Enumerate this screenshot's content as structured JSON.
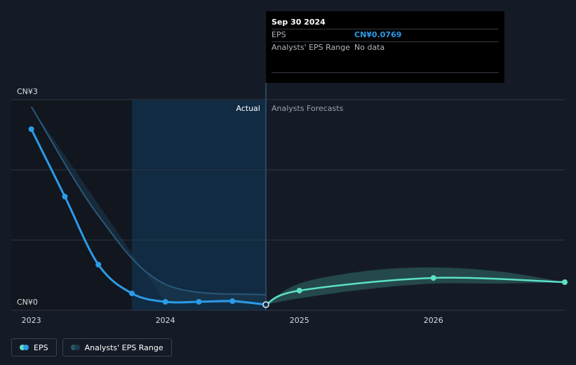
{
  "colors": {
    "eps": "#2b9be8",
    "forecast": "#5de0c8",
    "range": "#2b5b5b",
    "grid": "#2e3542",
    "axis_text": "#d8dbe0",
    "muted_text": "#9aa1ab"
  },
  "tooltip": {
    "date": "Sep 30 2024",
    "rows": [
      {
        "label": "EPS",
        "value": "CN¥0.0769"
      },
      {
        "label": "Analysts' EPS Range",
        "value": "No data"
      }
    ]
  },
  "labels": {
    "actual": "Actual",
    "forecast": "Analysts Forecasts"
  },
  "legend": [
    {
      "label": "EPS",
      "icon": "eps-dots-icon"
    },
    {
      "label": "Analysts' EPS Range",
      "icon": "range-dots-icon"
    }
  ],
  "chart_data": {
    "type": "line",
    "ylim": [
      0,
      3
    ],
    "y_ticks": [
      {
        "value": 3,
        "label": "CN¥3"
      },
      {
        "value": 0,
        "label": "CN¥0"
      }
    ],
    "x_ticks": [
      {
        "value": 2023.0,
        "label": "2023"
      },
      {
        "value": 2024.0,
        "label": "2024"
      },
      {
        "value": 2025.0,
        "label": "2025"
      },
      {
        "value": 2026.0,
        "label": "2026"
      }
    ],
    "xlim": [
      2022.85,
      2026.98
    ],
    "highlight_start": 2023.75,
    "actual_end": 2024.75,
    "series": [
      {
        "name": "EPS",
        "kind": "actual",
        "points": [
          {
            "x": 2023.0,
            "y": 2.58
          },
          {
            "x": 2023.25,
            "y": 1.62
          },
          {
            "x": 2023.5,
            "y": 0.65
          },
          {
            "x": 2023.75,
            "y": 0.24
          },
          {
            "x": 2024.0,
            "y": 0.12
          },
          {
            "x": 2024.25,
            "y": 0.12
          },
          {
            "x": 2024.5,
            "y": 0.13
          },
          {
            "x": 2024.75,
            "y": 0.08
          }
        ]
      },
      {
        "name": "EPS",
        "kind": "forecast",
        "points": [
          {
            "x": 2024.75,
            "y": 0.08
          },
          {
            "x": 2025.0,
            "y": 0.28
          },
          {
            "x": 2026.0,
            "y": 0.46
          },
          {
            "x": 2026.98,
            "y": 0.4
          }
        ]
      }
    ],
    "range_band": {
      "name": "Analysts' EPS Range",
      "upper": [
        {
          "x": 2024.75,
          "y": 0.08
        },
        {
          "x": 2025.0,
          "y": 0.38
        },
        {
          "x": 2025.5,
          "y": 0.56
        },
        {
          "x": 2026.0,
          "y": 0.61
        },
        {
          "x": 2026.5,
          "y": 0.55
        },
        {
          "x": 2026.98,
          "y": 0.4
        }
      ],
      "lower": [
        {
          "x": 2024.75,
          "y": 0.08
        },
        {
          "x": 2025.0,
          "y": 0.17
        },
        {
          "x": 2025.5,
          "y": 0.3
        },
        {
          "x": 2026.0,
          "y": 0.38
        },
        {
          "x": 2026.5,
          "y": 0.38
        },
        {
          "x": 2026.98,
          "y": 0.4
        }
      ]
    },
    "past_estimate": {
      "points": [
        {
          "x": 2023.0,
          "y": 2.9
        },
        {
          "x": 2023.5,
          "y": 1.35
        },
        {
          "x": 2024.0,
          "y": 0.37
        },
        {
          "x": 2024.75,
          "y": 0.22
        }
      ]
    }
  }
}
